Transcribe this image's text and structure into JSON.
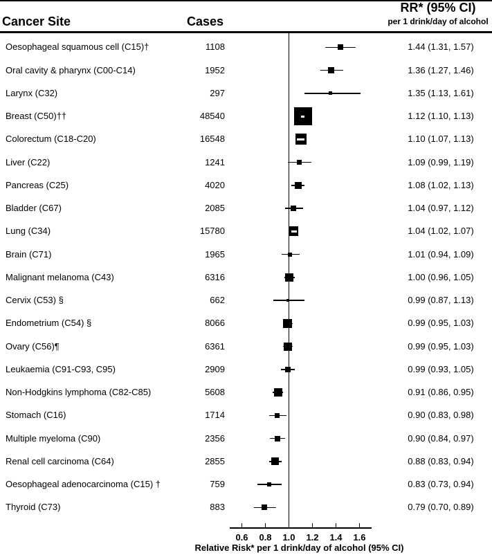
{
  "colors": {
    "ink": "#000000",
    "paper": "#ffffff"
  },
  "header": {
    "cancer_site": "Cancer Site",
    "cases": "Cases",
    "rr_title": "RR* (95% CI)",
    "rr_subtitle": "per 1 drink/day of alcohol"
  },
  "chart_data": {
    "type": "scatter",
    "subtype": "forest_plot",
    "x_axis": {
      "label": "Relative Risk* per 1 drink/day of alcohol (95% CI)",
      "ticks": [
        0.6,
        0.8,
        1.0,
        1.2,
        1.4,
        1.6
      ],
      "tick_labels": [
        "0.6",
        "0.8",
        "1.0",
        "1.2",
        "1.4",
        "1.6"
      ],
      "axis_range": [
        0.5,
        1.7
      ],
      "reference_line": 1.0
    },
    "rows": [
      {
        "label": "Oesophageal squamous cell (C15)†",
        "cases": "1108",
        "rr": 1.44,
        "ci_low": 1.31,
        "ci_high": 1.57,
        "rr_text": "1.44 (1.31, 1.57)",
        "marker_size_px": 8
      },
      {
        "label": "Oral cavity & pharynx (C00-C14)",
        "cases": "1952",
        "rr": 1.36,
        "ci_low": 1.27,
        "ci_high": 1.46,
        "rr_text": "1.36 (1.27, 1.46)",
        "marker_size_px": 9
      },
      {
        "label": "Larynx (C32)",
        "cases": "297",
        "rr": 1.35,
        "ci_low": 1.13,
        "ci_high": 1.61,
        "rr_text": "1.35 (1.13, 1.61)",
        "marker_size_px": 5
      },
      {
        "label": "Breast (C50)††",
        "cases": "48540",
        "rr": 1.12,
        "ci_low": 1.1,
        "ci_high": 1.13,
        "rr_text": "1.12 (1.10, 1.13)",
        "marker_size_px": 26
      },
      {
        "label": "Colorectum (C18-C20)",
        "cases": "16548",
        "rr": 1.1,
        "ci_low": 1.07,
        "ci_high": 1.13,
        "rr_text": "1.10 (1.07, 1.13)",
        "marker_size_px": 16
      },
      {
        "label": "Liver (C22)",
        "cases": "1241",
        "rr": 1.09,
        "ci_low": 0.99,
        "ci_high": 1.19,
        "rr_text": "1.09 (0.99, 1.19)",
        "marker_size_px": 7
      },
      {
        "label": "Pancreas (C25)",
        "cases": "4020",
        "rr": 1.08,
        "ci_low": 1.02,
        "ci_high": 1.13,
        "rr_text": "1.08 (1.02, 1.13)",
        "marker_size_px": 10
      },
      {
        "label": "Bladder (C67)",
        "cases": "2085",
        "rr": 1.04,
        "ci_low": 0.97,
        "ci_high": 1.12,
        "rr_text": "1.04 (0.97, 1.12)",
        "marker_size_px": 8
      },
      {
        "label": "Lung (C34)",
        "cases": "15780",
        "rr": 1.04,
        "ci_low": 1.02,
        "ci_high": 1.07,
        "rr_text": "1.04 (1.02, 1.07)",
        "marker_size_px": 14
      },
      {
        "label": "Brain (C71)",
        "cases": "1965",
        "rr": 1.01,
        "ci_low": 0.94,
        "ci_high": 1.09,
        "rr_text": "1.01 (0.94, 1.09)",
        "marker_size_px": 6
      },
      {
        "label": "Malignant melanoma (C43)",
        "cases": "6316",
        "rr": 1.0,
        "ci_low": 0.96,
        "ci_high": 1.05,
        "rr_text": "1.00 (0.96, 1.05)",
        "marker_size_px": 12
      },
      {
        "label": "Cervix (C53) §",
        "cases": "662",
        "rr": 0.99,
        "ci_low": 0.87,
        "ci_high": 1.13,
        "rr_text": "0.99 (0.87, 1.13)",
        "marker_size_px": 4
      },
      {
        "label": "Endometrium (C54) §",
        "cases": "8066",
        "rr": 0.99,
        "ci_low": 0.95,
        "ci_high": 1.03,
        "rr_text": "0.99 (0.95, 1.03)",
        "marker_size_px": 13
      },
      {
        "label": "Ovary (C56)¶",
        "cases": "6361",
        "rr": 0.99,
        "ci_low": 0.95,
        "ci_high": 1.03,
        "rr_text": "0.99 (0.95, 1.03)",
        "marker_size_px": 12
      },
      {
        "label": "Leukaemia (C91-C93, C95)",
        "cases": "2909",
        "rr": 0.99,
        "ci_low": 0.93,
        "ci_high": 1.05,
        "rr_text": "0.99 (0.93, 1.05)",
        "marker_size_px": 8
      },
      {
        "label": "Non-Hodgkins lymphoma (C82-C85)",
        "cases": "5608",
        "rr": 0.91,
        "ci_low": 0.86,
        "ci_high": 0.95,
        "rr_text": "0.91 (0.86, 0.95)",
        "marker_size_px": 12
      },
      {
        "label": "Stomach (C16)",
        "cases": "1714",
        "rr": 0.9,
        "ci_low": 0.83,
        "ci_high": 0.98,
        "rr_text": "0.90 (0.83, 0.98)",
        "marker_size_px": 7
      },
      {
        "label": "Multiple myeloma (C90)",
        "cases": "2356",
        "rr": 0.9,
        "ci_low": 0.84,
        "ci_high": 0.97,
        "rr_text": "0.90 (0.84, 0.97)",
        "marker_size_px": 8
      },
      {
        "label": "Renal cell carcinoma (C64)",
        "cases": "2855",
        "rr": 0.88,
        "ci_low": 0.83,
        "ci_high": 0.94,
        "rr_text": "0.88 (0.83, 0.94)",
        "marker_size_px": 11
      },
      {
        "label": "Oesophageal adenocarcinoma (C15) †",
        "cases": "759",
        "rr": 0.83,
        "ci_low": 0.73,
        "ci_high": 0.94,
        "rr_text": "0.83 (0.73, 0.94)",
        "marker_size_px": 6
      },
      {
        "label": "Thyroid (C73)",
        "cases": "883",
        "rr": 0.79,
        "ci_low": 0.7,
        "ci_high": 0.89,
        "rr_text": "0.79 (0.70, 0.89)",
        "marker_size_px": 8
      }
    ]
  }
}
